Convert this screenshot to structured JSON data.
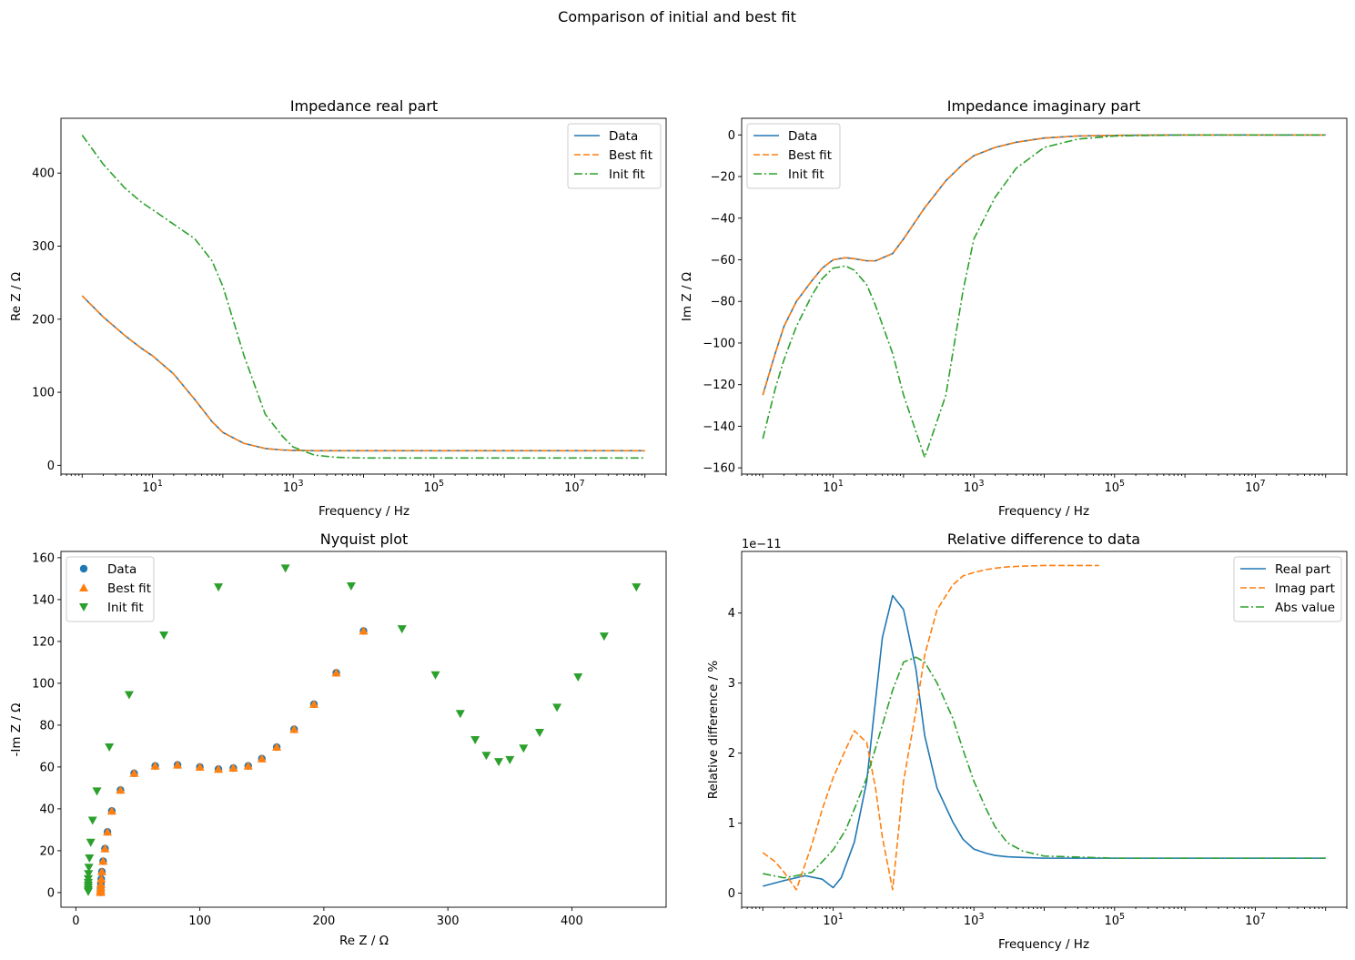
{
  "figure": {
    "suptitle": "Comparison of initial and best fit"
  },
  "colors": {
    "blue": "#1f77b4",
    "orange": "#ff7f0e",
    "green": "#2ca02c"
  },
  "chart_data": [
    {
      "id": "real",
      "type": "line",
      "title": "Impedance real part",
      "xlabel": "Frequency / Hz",
      "ylabel": "Re Z / Ω",
      "xscale": "log",
      "xlim": [
        0.5,
        200000000.0
      ],
      "ylim": [
        -12,
        475
      ],
      "xticks": [
        10,
        1000,
        100000,
        10000000
      ],
      "xtick_labels": [
        [
          "10",
          "1"
        ],
        [
          "10",
          "3"
        ],
        [
          "10",
          "5"
        ],
        [
          "10",
          "7"
        ]
      ],
      "yticks": [
        0,
        100,
        200,
        300,
        400
      ],
      "ytick_labels": [
        "0",
        "100",
        "200",
        "300",
        "400"
      ],
      "legend": "top-right",
      "x": [
        1,
        2,
        4,
        7,
        10,
        20,
        40,
        70,
        100,
        200,
        400,
        700,
        1000,
        2000,
        4000,
        10000,
        100000,
        1000000,
        10000000,
        100000000
      ],
      "series": [
        {
          "name": "Data",
          "color": "#1f77b4",
          "dash": "solid",
          "values": [
            232,
            203,
            178,
            160,
            150,
            125,
            90,
            60,
            45,
            30,
            23,
            21,
            20.5,
            20,
            20,
            20,
            20,
            20,
            20,
            20
          ]
        },
        {
          "name": "Best fit",
          "color": "#ff7f0e",
          "dash": "dashed",
          "values": [
            232,
            203,
            178,
            160,
            150,
            125,
            90,
            60,
            45,
            30,
            23,
            21,
            20.5,
            20,
            20,
            20,
            20,
            20,
            20,
            20
          ]
        },
        {
          "name": "Init fit",
          "color": "#2ca02c",
          "dash": "dashdot",
          "values": [
            452,
            412,
            380,
            360,
            350,
            330,
            310,
            280,
            245,
            150,
            70,
            40,
            25,
            14,
            11,
            10,
            10,
            10,
            10,
            10
          ]
        }
      ]
    },
    {
      "id": "imag",
      "type": "line",
      "title": "Impedance imaginary part",
      "xlabel": "Frequency / Hz",
      "ylabel": "Im Z / Ω",
      "xscale": "log",
      "xlim": [
        0.5,
        200000000.0
      ],
      "ylim": [
        -163,
        8
      ],
      "xticks": [
        10,
        1000,
        100000,
        10000000
      ],
      "xtick_labels": [
        [
          "10",
          "1"
        ],
        [
          "10",
          "3"
        ],
        [
          "10",
          "5"
        ],
        [
          "10",
          "7"
        ]
      ],
      "yticks": [
        0,
        -20,
        -40,
        -60,
        -80,
        -100,
        -120,
        -140,
        -160
      ],
      "ytick_labels": [
        "0",
        "−20",
        "−40",
        "−60",
        "−80",
        "−100",
        "−120",
        "−140",
        "−160"
      ],
      "legend": "top-left",
      "x": [
        1,
        1.5,
        2,
        3,
        5,
        7,
        10,
        15,
        20,
        30,
        40,
        70,
        100,
        200,
        400,
        700,
        1000,
        2000,
        4000,
        10000,
        30000,
        100000,
        1000000,
        10000000,
        100000000
      ],
      "series": [
        {
          "name": "Data",
          "color": "#1f77b4",
          "dash": "solid",
          "values": [
            -125,
            -105,
            -92,
            -80,
            -70,
            -64,
            -60,
            -59,
            -59.5,
            -60.5,
            -60.5,
            -57,
            -50,
            -35,
            -22,
            -14,
            -10,
            -6,
            -3.5,
            -1.5,
            -0.5,
            -0.2,
            0,
            0,
            0
          ]
        },
        {
          "name": "Best fit",
          "color": "#ff7f0e",
          "dash": "dashed",
          "values": [
            -125,
            -105,
            -92,
            -80,
            -70,
            -64,
            -60,
            -59,
            -59.5,
            -60.5,
            -60.5,
            -57,
            -50,
            -35,
            -22,
            -14,
            -10,
            -6,
            -3.5,
            -1.5,
            -0.5,
            -0.2,
            0,
            0,
            0
          ]
        },
        {
          "name": "Init fit",
          "color": "#2ca02c",
          "dash": "dashdot",
          "values": [
            -146,
            -122,
            -108,
            -92,
            -77,
            -69,
            -64,
            -63,
            -65,
            -72,
            -82,
            -105,
            -125,
            -155,
            -125,
            -75,
            -50,
            -30,
            -16,
            -6,
            -2,
            -0.5,
            0,
            0,
            0
          ]
        }
      ]
    },
    {
      "id": "nyquist",
      "type": "scatter",
      "title": "Nyquist plot",
      "xlabel": "Re Z / Ω",
      "ylabel": "-Im Z / Ω",
      "xlim": [
        -12,
        476
      ],
      "ylim": [
        -7,
        163
      ],
      "xticks": [
        0,
        100,
        200,
        300,
        400
      ],
      "xtick_labels": [
        "0",
        "100",
        "200",
        "300",
        "400"
      ],
      "yticks": [
        0,
        20,
        40,
        60,
        80,
        100,
        120,
        140,
        160
      ],
      "ytick_labels": [
        "0",
        "20",
        "40",
        "60",
        "80",
        "100",
        "120",
        "140",
        "160"
      ],
      "legend": "top-left",
      "series": [
        {
          "name": "Data",
          "color": "#1f77b4",
          "marker": "circle",
          "x": [
            20,
            20,
            20,
            20,
            20.1,
            20.2,
            20.5,
            21,
            22,
            23.5,
            25.5,
            29,
            36,
            47,
            64,
            82,
            100,
            115,
            127,
            139,
            150,
            162,
            176,
            192,
            210,
            232
          ],
          "y": [
            0.1,
            0.3,
            0.7,
            1.5,
            2.5,
            4,
            6.5,
            10,
            15,
            21,
            29,
            39,
            49,
            57,
            60.5,
            61,
            60,
            59,
            59.5,
            60.5,
            64,
            69.5,
            78,
            90,
            105,
            125
          ]
        },
        {
          "name": "Best fit",
          "color": "#ff7f0e",
          "marker": "triangle-up",
          "x": [
            20,
            20,
            20,
            20,
            20.1,
            20.2,
            20.5,
            21,
            22,
            23.5,
            25.5,
            29,
            36,
            47,
            64,
            82,
            100,
            115,
            127,
            139,
            150,
            162,
            176,
            192,
            210,
            232
          ],
          "y": [
            0.1,
            0.3,
            0.7,
            1.5,
            2.5,
            4,
            6.5,
            10,
            15,
            21,
            29,
            39,
            49,
            57,
            60.5,
            61,
            60,
            59,
            59.5,
            60.5,
            64,
            69.5,
            78,
            90,
            105,
            125
          ]
        },
        {
          "name": "Init fit",
          "color": "#2ca02c",
          "marker": "triangle-down",
          "x": [
            10,
            10,
            10,
            10,
            10,
            10,
            10.2,
            10.5,
            11,
            12,
            13.5,
            17,
            27,
            43,
            71,
            115,
            169,
            222,
            263,
            290,
            310,
            322,
            331,
            341,
            350,
            361,
            374,
            388,
            405,
            426,
            452
          ],
          "y": [
            0.5,
            1.3,
            2.4,
            3.5,
            4.8,
            6.6,
            9,
            12,
            16.5,
            24,
            34.5,
            48.5,
            69.5,
            94.5,
            123,
            146,
            155,
            146.5,
            126,
            104,
            85.5,
            73,
            65.5,
            62.5,
            63.5,
            69,
            76.5,
            88.5,
            103,
            122.5,
            146
          ]
        }
      ]
    },
    {
      "id": "reldiff",
      "type": "line",
      "title": "Relative difference to data",
      "xlabel": "Frequency / Hz",
      "ylabel": "Relative difference / %",
      "xscale": "log",
      "offset_text": "1e−11",
      "xlim": [
        0.5,
        200000000.0
      ],
      "ylim": [
        -0.2,
        4.88
      ],
      "xticks": [
        10,
        1000,
        100000,
        10000000
      ],
      "xtick_labels": [
        [
          "10",
          "1"
        ],
        [
          "10",
          "3"
        ],
        [
          "10",
          "5"
        ],
        [
          "10",
          "7"
        ]
      ],
      "yticks": [
        0,
        1,
        2,
        3,
        4
      ],
      "ytick_labels": [
        "0",
        "1",
        "2",
        "3",
        "4"
      ],
      "legend": "top-right",
      "series": [
        {
          "name": "Real part",
          "color": "#1f77b4",
          "dash": "solid",
          "x": [
            1,
            2,
            4,
            7,
            10,
            13,
            20,
            30,
            50,
            70,
            100,
            150,
            200,
            300,
            500,
            700,
            1000,
            1500,
            2000,
            3000,
            5000,
            10000,
            100000,
            1000000,
            10000000,
            100000000
          ],
          "y": [
            0.1,
            0.18,
            0.25,
            0.2,
            0.08,
            0.22,
            0.73,
            1.6,
            3.65,
            4.25,
            4.05,
            3.2,
            2.25,
            1.5,
            1.02,
            0.77,
            0.63,
            0.57,
            0.54,
            0.52,
            0.51,
            0.5,
            0.5,
            0.5,
            0.5,
            0.5
          ]
        },
        {
          "name": "Imag part",
          "color": "#ff7f0e",
          "dash": "dashed",
          "x": [
            1,
            1.5,
            2,
            3,
            5,
            7,
            10,
            15,
            20,
            30,
            40,
            50,
            70,
            100,
            150,
            200,
            300,
            500,
            700,
            1000,
            1500,
            2000,
            3000,
            5000,
            10000,
            30000,
            60000
          ],
          "y": [
            0.58,
            0.45,
            0.3,
            0.05,
            0.7,
            1.2,
            1.65,
            2.05,
            2.32,
            2.15,
            1.5,
            0.8,
            0.05,
            1.6,
            2.6,
            3.4,
            4.05,
            4.4,
            4.53,
            4.58,
            4.62,
            4.64,
            4.66,
            4.67,
            4.68,
            4.68,
            4.68
          ]
        },
        {
          "name": "Abs value",
          "color": "#2ca02c",
          "dash": "dashdot",
          "x": [
            1,
            2,
            3,
            5,
            7,
            10,
            15,
            20,
            30,
            50,
            70,
            100,
            150,
            200,
            300,
            500,
            700,
            1000,
            1500,
            2000,
            3000,
            5000,
            10000,
            100000,
            1000000,
            10000000,
            100000000
          ],
          "y": [
            0.28,
            0.22,
            0.25,
            0.3,
            0.45,
            0.62,
            0.9,
            1.2,
            1.65,
            2.4,
            2.9,
            3.3,
            3.37,
            3.3,
            3.0,
            2.5,
            2.05,
            1.6,
            1.2,
            0.95,
            0.72,
            0.6,
            0.53,
            0.5,
            0.5,
            0.5,
            0.5
          ]
        }
      ]
    }
  ]
}
